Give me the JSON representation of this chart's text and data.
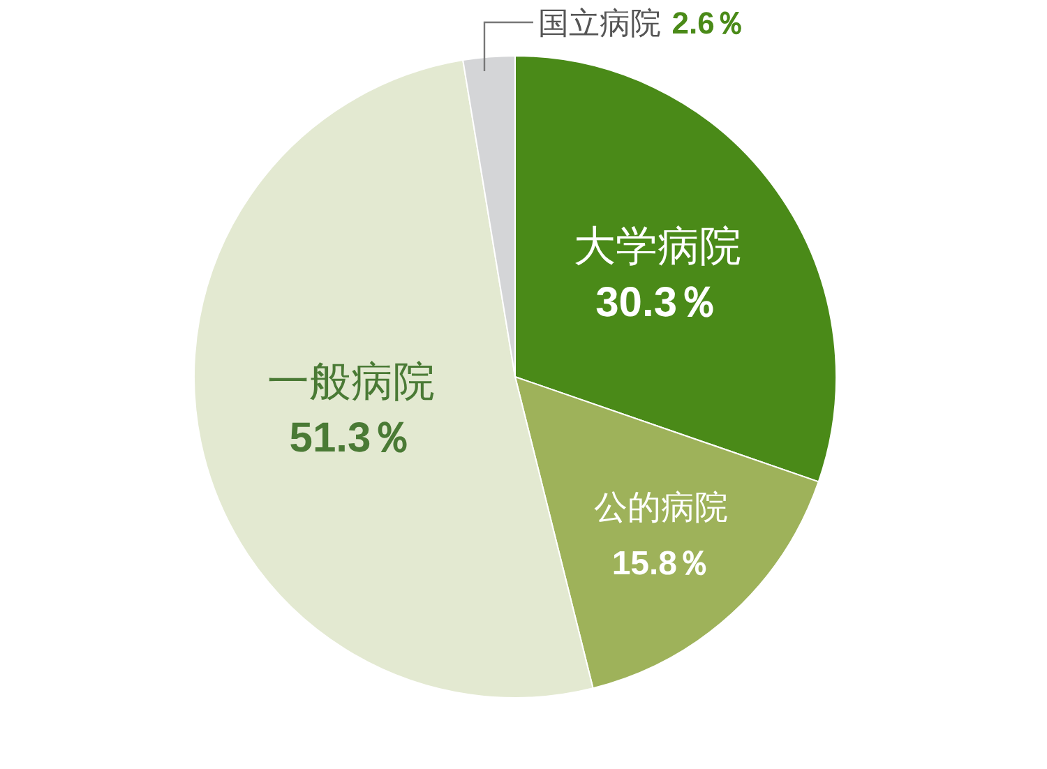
{
  "chart_data": {
    "type": "pie",
    "categories": [
      "大学病院",
      "公的病院",
      "一般病院",
      "国立病院"
    ],
    "values": [
      30.3,
      15.8,
      51.3,
      2.6
    ],
    "colors": [
      "#4a8a18",
      "#9eb25a",
      "#e3e9d1",
      "#d4d5d7"
    ],
    "value_labels": [
      "30.3％",
      "15.8％",
      "51.3％",
      "2.6％"
    ]
  }
}
